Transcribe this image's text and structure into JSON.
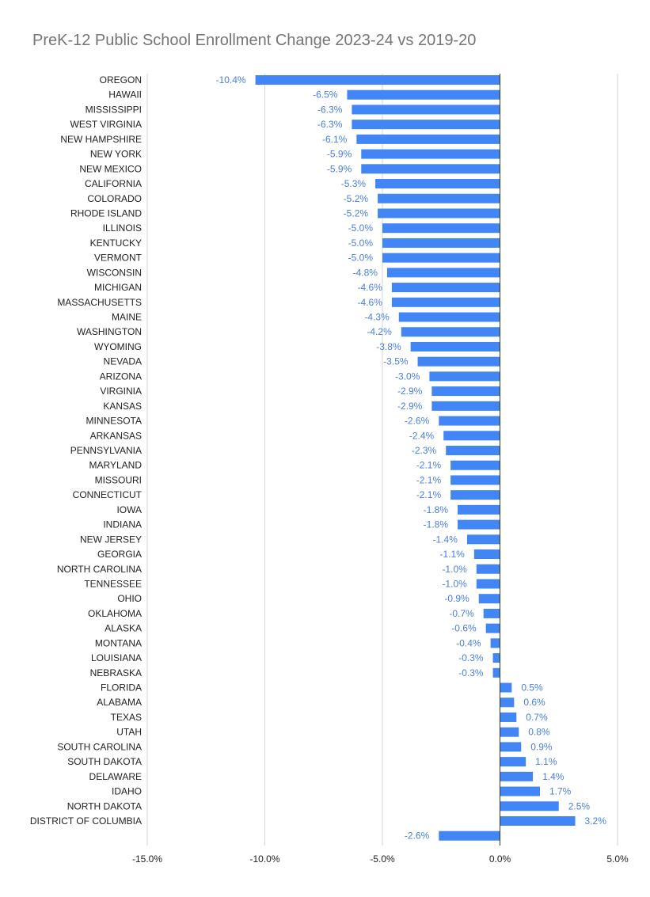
{
  "chart_data": {
    "type": "bar",
    "orientation": "horizontal",
    "title": "PreK-12 Public School Enrollment Change 2023-24 vs 2019-20",
    "xlabel": "",
    "ylabel": "",
    "xlim": [
      -15,
      5
    ],
    "xticks": [
      -15,
      -10,
      -5,
      0,
      5
    ],
    "xtick_labels": [
      "-15.0%",
      "-10.0%",
      "-5.0%",
      "0.0%",
      "5.0%"
    ],
    "grid": true,
    "legend": "none",
    "bar_color": "#4285f4",
    "label_color": "#4a7fd6",
    "categories": [
      "OREGON",
      "HAWAII",
      "MISSISSIPPI",
      "WEST VIRGINIA",
      "NEW HAMPSHIRE",
      "NEW YORK",
      "NEW MEXICO",
      "CALIFORNIA",
      "COLORADO",
      "RHODE ISLAND",
      "ILLINOIS",
      "KENTUCKY",
      "VERMONT",
      "WISCONSIN",
      "MICHIGAN",
      "MASSACHUSETTS",
      "MAINE",
      "WASHINGTON",
      "WYOMING",
      "NEVADA",
      "ARIZONA",
      "VIRGINIA",
      "KANSAS",
      "MINNESOTA",
      "ARKANSAS",
      "PENNSYLVANIA",
      "MARYLAND",
      "MISSOURI",
      "CONNECTICUT",
      "IOWA",
      "INDIANA",
      "NEW JERSEY",
      "GEORGIA",
      "NORTH CAROLINA",
      "TENNESSEE",
      "OHIO",
      "OKLAHOMA",
      "ALASKA",
      "MONTANA",
      "LOUISIANA",
      "NEBRASKA",
      "FLORIDA",
      "ALABAMA",
      "TEXAS",
      "UTAH",
      "SOUTH CAROLINA",
      "SOUTH DAKOTA",
      "DELAWARE",
      "IDAHO",
      "NORTH DAKOTA",
      "DISTRICT OF COLUMBIA",
      ""
    ],
    "values": [
      -10.4,
      -6.5,
      -6.3,
      -6.3,
      -6.1,
      -5.9,
      -5.9,
      -5.3,
      -5.2,
      -5.2,
      -5.0,
      -5.0,
      -5.0,
      -4.8,
      -4.6,
      -4.6,
      -4.3,
      -4.2,
      -3.8,
      -3.5,
      -3.0,
      -2.9,
      -2.9,
      -2.6,
      -2.4,
      -2.3,
      -2.1,
      -2.1,
      -2.1,
      -1.8,
      -1.8,
      -1.4,
      -1.1,
      -1.0,
      -1.0,
      -0.9,
      -0.7,
      -0.6,
      -0.4,
      -0.3,
      -0.3,
      0.5,
      0.6,
      0.7,
      0.8,
      0.9,
      1.1,
      1.4,
      1.7,
      2.5,
      3.2,
      -2.6
    ],
    "value_labels": [
      "-10.4%",
      "-6.5%",
      "-6.3%",
      "-6.3%",
      "-6.1%",
      "-5.9%",
      "-5.9%",
      "-5.3%",
      "-5.2%",
      "-5.2%",
      "-5.0%",
      "-5.0%",
      "-5.0%",
      "-4.8%",
      "-4.6%",
      "-4.6%",
      "-4.3%",
      "-4.2%",
      "-3.8%",
      "-3.5%",
      "-3.0%",
      "-2.9%",
      "-2.9%",
      "-2.6%",
      "-2.4%",
      "-2.3%",
      "-2.1%",
      "-2.1%",
      "-2.1%",
      "-1.8%",
      "-1.8%",
      "-1.4%",
      "-1.1%",
      "-1.0%",
      "-1.0%",
      "-0.9%",
      "-0.7%",
      "-0.6%",
      "-0.4%",
      "-0.3%",
      "-0.3%",
      "0.5%",
      "0.6%",
      "0.7%",
      "0.8%",
      "0.9%",
      "1.1%",
      "1.4%",
      "1.7%",
      "2.5%",
      "3.2%",
      "-2.6%"
    ]
  }
}
